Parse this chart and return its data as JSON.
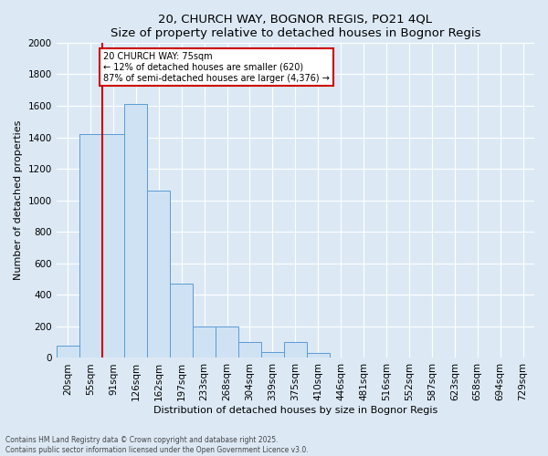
{
  "title1": "20, CHURCH WAY, BOGNOR REGIS, PO21 4QL",
  "title2": "Size of property relative to detached houses in Bognor Regis",
  "xlabel": "Distribution of detached houses by size in Bognor Regis",
  "ylabel": "Number of detached properties",
  "categories": [
    "20sqm",
    "55sqm",
    "91sqm",
    "126sqm",
    "162sqm",
    "197sqm",
    "233sqm",
    "268sqm",
    "304sqm",
    "339sqm",
    "375sqm",
    "410sqm",
    "446sqm",
    "481sqm",
    "516sqm",
    "552sqm",
    "587sqm",
    "623sqm",
    "658sqm",
    "694sqm",
    "729sqm"
  ],
  "values": [
    80,
    1420,
    1420,
    1610,
    1060,
    470,
    200,
    200,
    100,
    35,
    100,
    30,
    0,
    0,
    0,
    0,
    0,
    0,
    0,
    0,
    0
  ],
  "bar_color": "#cfe2f3",
  "bar_edge_color": "#5b9bd5",
  "vline_color": "#cc0000",
  "annotation_line1": "20 CHURCH WAY: 75sqm",
  "annotation_line2": "← 12% of detached houses are smaller (620)",
  "annotation_line3": "87% of semi-detached houses are larger (4,376) →",
  "annotation_box_facecolor": "white",
  "annotation_box_edgecolor": "#cc0000",
  "ylim": [
    0,
    2000
  ],
  "yticks": [
    0,
    200,
    400,
    600,
    800,
    1000,
    1200,
    1400,
    1600,
    1800,
    2000
  ],
  "footer1": "Contains HM Land Registry data © Crown copyright and database right 2025.",
  "footer2": "Contains public sector information licensed under the Open Government Licence v3.0.",
  "bg_color": "#dce9f5",
  "plot_bg_color": "#dce9f5",
  "grid_color": "white",
  "title_fontsize": 9.5,
  "axis_label_fontsize": 8,
  "tick_fontsize": 7.5,
  "footer_fontsize": 5.5
}
